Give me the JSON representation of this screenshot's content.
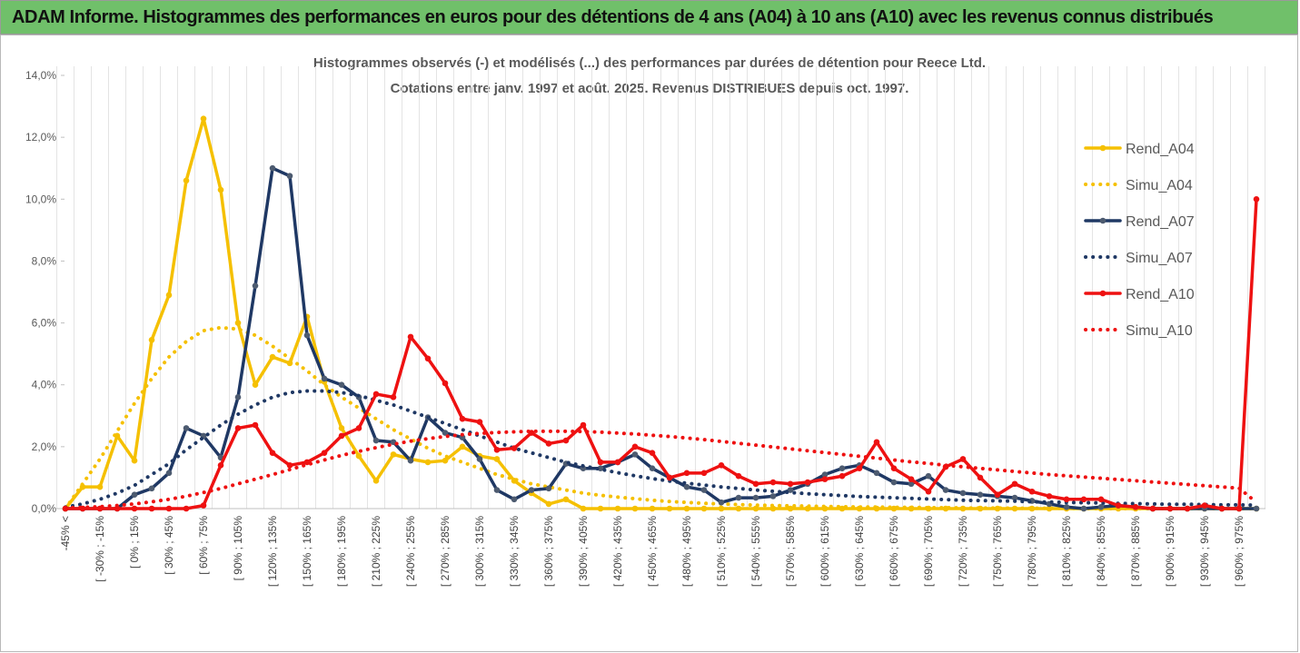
{
  "header": {
    "title": "ADAM Informe. Histogrammes des performances en euros pour des détentions de 4 ans (A04) à 10 ans (A10) avec les revenus connus distribués"
  },
  "chart_data": {
    "type": "line",
    "title": [
      "Histogrammes observés (-) et modélisés (...) des performances par durées de détention pour Reece Ltd.",
      "Cotations entre janv. 1997 et août. 2025. Revenus DISTRIBUES depuis oct. 1997."
    ],
    "categories": [
      "-45% <",
      null,
      "[ -30% ; -15%",
      null,
      "[ 0% ; 15%",
      null,
      "[ 30% ; 45%",
      null,
      "[ 60% ; 75%",
      null,
      "[ 90% ; 105%",
      null,
      "[ 120% ; 135%",
      null,
      "[ 150% ; 165%",
      null,
      "[ 180% ; 195%",
      null,
      "[ 210% ; 225%",
      null,
      "[ 240% ; 255%",
      null,
      "[ 270% ; 285%",
      null,
      "[ 300% ; 315%",
      null,
      "[ 330% ; 345%",
      null,
      "[ 360% ; 375%",
      null,
      "[ 390% ; 405%",
      null,
      "[ 420% ; 435%",
      null,
      "[ 450% ; 465%",
      null,
      "[ 480% ; 495%",
      null,
      "[ 510% ; 525%",
      null,
      "[ 540% ; 555%",
      null,
      "[ 570% ; 585%",
      null,
      "[ 600% ; 615%",
      null,
      "[ 630% ; 645%",
      null,
      "[ 660% ; 675%",
      null,
      "[ 690% ; 705%",
      null,
      "[ 720% ; 735%",
      null,
      "[ 750% ; 765%",
      null,
      "[ 780% ; 795%",
      null,
      "[ 810% ; 825%",
      null,
      "[ 840% ; 855%",
      null,
      "[ 870% ; 885%",
      null,
      "[ 900% ; 915%",
      null,
      "[ 930% ; 945%",
      null,
      "[ 960% ; 975%",
      null
    ],
    "ylim": [
      0,
      14
    ],
    "yticks": [
      {
        "value": 0,
        "label": "0,0%"
      },
      {
        "value": 2,
        "label": "2,0%"
      },
      {
        "value": 4,
        "label": "4,0%"
      },
      {
        "value": 6,
        "label": "6,0%"
      },
      {
        "value": 8,
        "label": "8,0%"
      },
      {
        "value": 10,
        "label": "10,0%"
      },
      {
        "value": 12,
        "label": "12,0%"
      },
      {
        "value": 14,
        "label": "14,0%"
      }
    ],
    "grid": true,
    "legend": "right",
    "series": [
      {
        "name": "Rend_A04",
        "color": "#f5c000",
        "line": "solid",
        "marker_color": "#f5c000",
        "values": [
          0,
          0.7,
          0.7,
          2.35,
          1.55,
          5.45,
          6.9,
          10.6,
          12.6,
          10.3,
          6.0,
          4.0,
          4.9,
          4.7,
          6.2,
          4.1,
          2.6,
          1.7,
          0.9,
          1.75,
          1.6,
          1.5,
          1.55,
          2.0,
          1.7,
          1.6,
          0.9,
          0.5,
          0.15,
          0.3,
          0,
          0,
          0,
          0,
          0,
          0,
          0,
          0,
          0,
          0,
          0,
          0,
          0,
          0,
          0,
          0,
          0,
          0,
          0,
          0,
          0,
          0,
          0,
          0,
          0,
          0,
          0,
          0,
          0,
          0,
          0,
          0,
          0,
          0,
          0,
          0,
          0,
          0,
          0,
          0
        ]
      },
      {
        "name": "Simu_A04",
        "color": "#f5c000",
        "line": "dotted",
        "values": [
          0,
          0.8,
          1.6,
          2.5,
          3.4,
          4.2,
          4.9,
          5.4,
          5.75,
          5.85,
          5.8,
          5.6,
          5.25,
          4.85,
          4.45,
          4.0,
          3.6,
          3.25,
          2.9,
          2.55,
          2.25,
          1.95,
          1.7,
          1.5,
          1.3,
          1.1,
          0.95,
          0.8,
          0.7,
          0.6,
          0.5,
          0.43,
          0.37,
          0.32,
          0.27,
          0.23,
          0.2,
          0.17,
          0.15,
          0.13,
          0.11,
          0.1,
          0.09,
          0.08,
          0.07,
          0.06,
          0.05,
          0.05,
          0.04,
          0.04,
          0.03,
          0.03,
          0.02,
          0.02,
          0.02,
          0.01,
          0.01,
          0.01,
          0.01,
          0,
          0,
          0,
          0,
          0,
          0,
          0,
          0,
          0,
          0,
          0
        ]
      },
      {
        "name": "Rend_A07",
        "color": "#1f3864",
        "line": "solid",
        "marker_color": "#4d5b70",
        "values": [
          0,
          0,
          0,
          0,
          0.45,
          0.65,
          1.15,
          2.6,
          2.35,
          1.65,
          3.6,
          7.2,
          11.0,
          10.75,
          5.6,
          4.2,
          4.0,
          3.6,
          2.2,
          2.15,
          1.55,
          2.95,
          2.45,
          2.3,
          1.6,
          0.6,
          0.3,
          0.6,
          0.65,
          1.45,
          1.3,
          1.3,
          1.5,
          1.75,
          1.3,
          1.0,
          0.7,
          0.6,
          0.2,
          0.35,
          0.35,
          0.4,
          0.6,
          0.8,
          1.1,
          1.3,
          1.4,
          1.15,
          0.85,
          0.8,
          1.05,
          0.6,
          0.5,
          0.45,
          0.4,
          0.35,
          0.25,
          0.15,
          0.05,
          0,
          0.05,
          0.1,
          0.05,
          0,
          0,
          0,
          0,
          0,
          0,
          0
        ]
      },
      {
        "name": "Simu_A07",
        "color": "#1f3864",
        "line": "dotted",
        "values": [
          0.05,
          0.15,
          0.3,
          0.5,
          0.75,
          1.1,
          1.45,
          1.9,
          2.3,
          2.7,
          3.05,
          3.35,
          3.6,
          3.75,
          3.8,
          3.8,
          3.75,
          3.65,
          3.5,
          3.35,
          3.15,
          2.95,
          2.75,
          2.55,
          2.35,
          2.15,
          1.95,
          1.8,
          1.65,
          1.5,
          1.38,
          1.27,
          1.16,
          1.06,
          0.97,
          0.89,
          0.82,
          0.76,
          0.7,
          0.65,
          0.6,
          0.56,
          0.52,
          0.48,
          0.45,
          0.42,
          0.39,
          0.37,
          0.35,
          0.33,
          0.31,
          0.29,
          0.27,
          0.26,
          0.25,
          0.24,
          0.22,
          0.21,
          0.2,
          0.19,
          0.18,
          0.17,
          0.16,
          0.15,
          0.14,
          0.14,
          0.13,
          0.12,
          0.12,
          0.11
        ]
      },
      {
        "name": "Rend_A10",
        "color": "#ee1111",
        "line": "solid",
        "marker_color": "#ee1111",
        "values": [
          0,
          0,
          0,
          0,
          0,
          0,
          0,
          0,
          0.1,
          1.4,
          2.6,
          2.7,
          1.8,
          1.4,
          1.5,
          1.8,
          2.35,
          2.6,
          3.7,
          3.6,
          5.55,
          4.85,
          4.05,
          2.9,
          2.8,
          1.9,
          1.95,
          2.45,
          2.1,
          2.2,
          2.7,
          1.5,
          1.5,
          2.0,
          1.8,
          1.0,
          1.15,
          1.15,
          1.4,
          1.05,
          0.8,
          0.85,
          0.8,
          0.85,
          0.95,
          1.05,
          1.3,
          2.15,
          1.3,
          0.95,
          0.55,
          1.35,
          1.6,
          1.0,
          0.45,
          0.8,
          0.55,
          0.4,
          0.3,
          0.3,
          0.3,
          0.1,
          0.05,
          0,
          0,
          0,
          0.1,
          0,
          0,
          10.0
        ]
      },
      {
        "name": "Simu_A10",
        "color": "#ee1111",
        "line": "dotted",
        "values": [
          0.02,
          0.04,
          0.06,
          0.1,
          0.15,
          0.22,
          0.3,
          0.4,
          0.52,
          0.65,
          0.8,
          0.95,
          1.1,
          1.26,
          1.42,
          1.57,
          1.72,
          1.85,
          1.97,
          2.08,
          2.18,
          2.26,
          2.33,
          2.39,
          2.43,
          2.46,
          2.48,
          2.5,
          2.5,
          2.5,
          2.49,
          2.47,
          2.44,
          2.41,
          2.37,
          2.33,
          2.28,
          2.23,
          2.17,
          2.11,
          2.05,
          1.99,
          1.93,
          1.87,
          1.81,
          1.75,
          1.69,
          1.63,
          1.57,
          1.51,
          1.46,
          1.4,
          1.35,
          1.3,
          1.25,
          1.2,
          1.15,
          1.1,
          1.06,
          1.02,
          0.98,
          0.94,
          0.9,
          0.86,
          0.82,
          0.78,
          0.74,
          0.7,
          0.66,
          0.2
        ]
      }
    ]
  }
}
